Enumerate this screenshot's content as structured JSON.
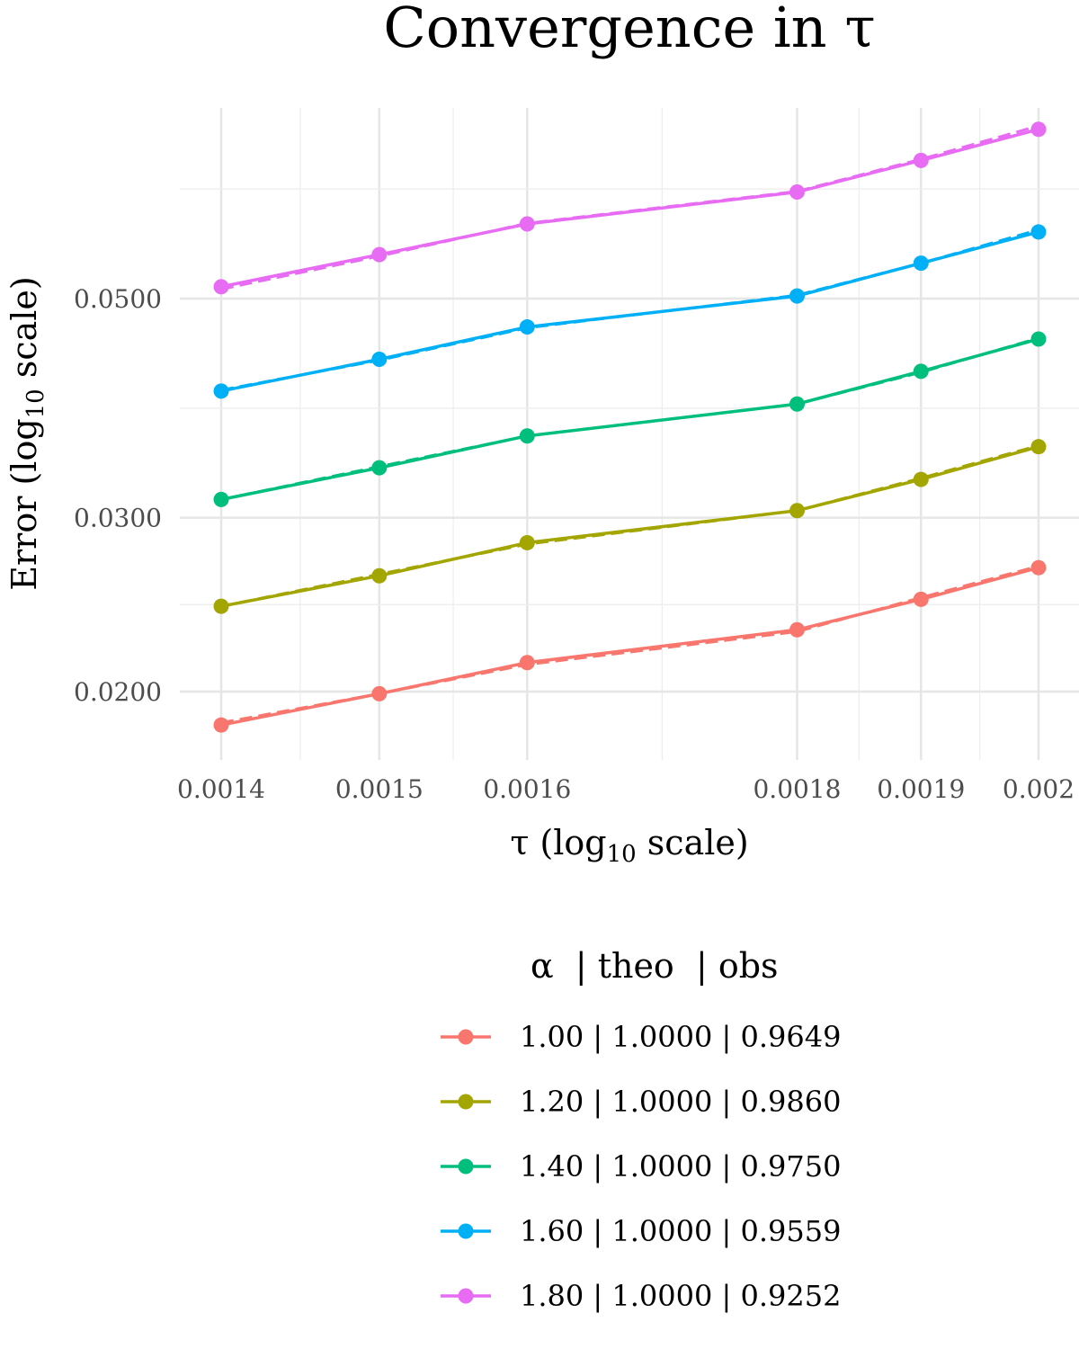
{
  "chart_data": {
    "type": "line",
    "title": "Convergence in τ",
    "xlabel": {
      "main": "τ (log",
      "sub": "10",
      "tail": " scale)"
    },
    "ylabel": {
      "main": "Error (log",
      "sub": "10",
      "tail": " scale)"
    },
    "x_scale": "log10",
    "y_scale": "log10",
    "x_ticks": [
      0.0014,
      0.0015,
      0.0016,
      0.0018,
      0.0019,
      0.002
    ],
    "x_tick_labels": [
      "0.0014",
      "0.0015",
      "0.0016",
      "0.0018",
      "0.0019",
      "0.002"
    ],
    "y_ticks": [
      0.02,
      0.03,
      0.05
    ],
    "y_tick_labels": [
      "0.0200",
      "0.0300",
      "0.0500"
    ],
    "grid": true,
    "legend_position": "bottom",
    "legend_title": "α  | theo  | obs",
    "x": [
      0.0014,
      0.0015,
      0.0016,
      0.0018,
      0.0019,
      0.002
    ],
    "series": [
      {
        "name": "1.00 | 1.0000 | 0.9649",
        "color": "#F8766D",
        "observed": [
          0.0185,
          0.0199,
          0.0214,
          0.0231,
          0.0248,
          0.0267
        ],
        "reference": [
          0.0186,
          0.0199,
          0.0213,
          0.023,
          0.0249,
          0.0268
        ]
      },
      {
        "name": "1.20 | 1.0000 | 0.9860",
        "color": "#A3A500",
        "observed": [
          0.0244,
          0.0262,
          0.0283,
          0.0305,
          0.0328,
          0.0354
        ],
        "reference": [
          0.0244,
          0.0263,
          0.0282,
          0.0305,
          0.0329,
          0.0355
        ]
      },
      {
        "name": "1.40 | 1.0000 | 0.9750",
        "color": "#00BF7D",
        "observed": [
          0.0313,
          0.0337,
          0.0363,
          0.0391,
          0.0422,
          0.0455
        ],
        "reference": [
          0.0313,
          0.0338,
          0.0363,
          0.0391,
          0.0421,
          0.0456
        ]
      },
      {
        "name": "1.60 | 1.0000 | 0.9559",
        "color": "#00B0F6",
        "observed": [
          0.0403,
          0.0434,
          0.0468,
          0.0503,
          0.0543,
          0.0584
        ],
        "reference": [
          0.0404,
          0.0433,
          0.0467,
          0.0504,
          0.0543,
          0.0587
        ]
      },
      {
        "name": "1.80 | 1.0000 | 0.9252",
        "color": "#E76BF3",
        "observed": [
          0.0514,
          0.0554,
          0.0595,
          0.0641,
          0.069,
          0.0742
        ],
        "reference": [
          0.0511,
          0.0552,
          0.0596,
          0.0642,
          0.0692,
          0.0748
        ]
      }
    ]
  }
}
